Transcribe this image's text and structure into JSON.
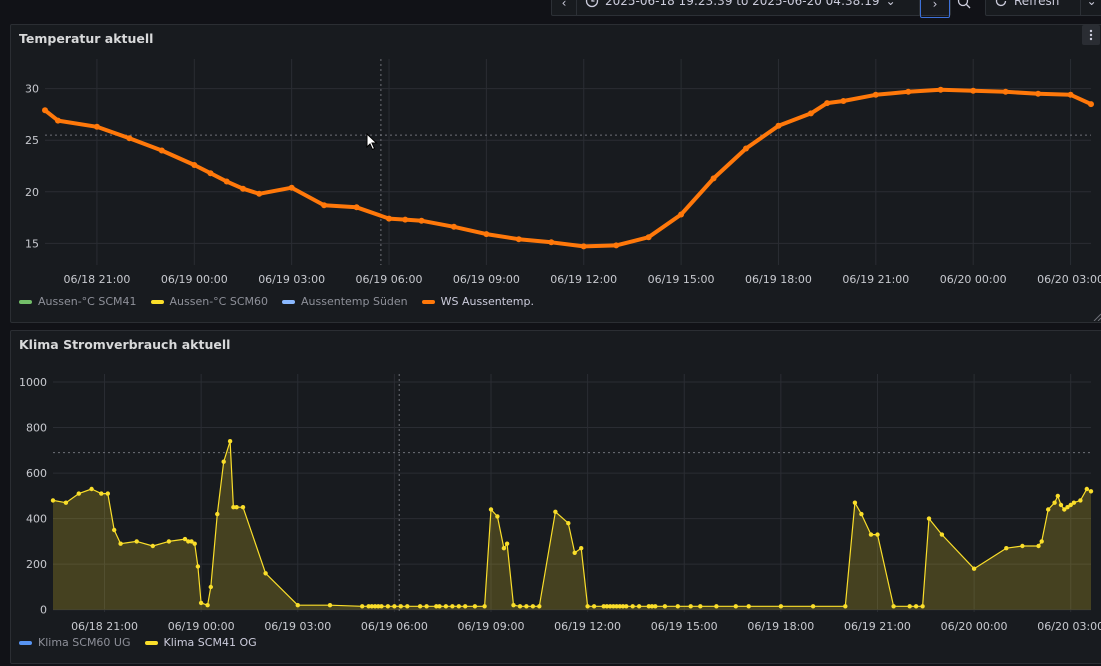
{
  "toolbar": {
    "time_range": "2025-06-18 19:23:39 to 2025-06-20 04:38:19",
    "refresh_label": "Refresh"
  },
  "panels": [
    {
      "title": "Temperatur aktuell",
      "legend": [
        {
          "label": "Aussen-°C SCM41",
          "color": "#73bf69"
        },
        {
          "label": "Aussen-°C SCM60",
          "color": "#fade2a"
        },
        {
          "label": "Aussentemp Süden",
          "color": "#8ab8ff"
        },
        {
          "label": "WS Aussentemp.",
          "color": "#ff780a"
        }
      ]
    },
    {
      "title": "Klima Stromverbrauch aktuell",
      "legend": [
        {
          "label": "Klima SCM60 UG",
          "color": "#5794f2"
        },
        {
          "label": "Klima SCM41 OG",
          "color": "#fade2a"
        }
      ]
    }
  ],
  "chart_data": [
    {
      "type": "scatter",
      "title": "Temperatur aktuell",
      "x_ticks": [
        "06/18 21:00",
        "06/19 00:00",
        "06/19 03:00",
        "06/19 06:00",
        "06/19 09:00",
        "06/19 12:00",
        "06/19 15:00",
        "06/19 18:00",
        "06/19 21:00",
        "06/20 00:00",
        "06/20 03:00"
      ],
      "y_ticks": [
        15,
        20,
        25,
        30
      ],
      "ylim": [
        12.9,
        32.1
      ],
      "xlim_hours": [
        -1.6,
        30.63
      ],
      "threshold_y": 25.5,
      "cursor_x_hours": 8.75,
      "grid": true,
      "legend_position": "bottom-left",
      "series": [
        {
          "name": "WS Aussentemp.",
          "color": "#ff780a",
          "x": [
            -1.6,
            -1.2,
            0,
            1,
            2,
            3,
            3.5,
            4,
            4.5,
            5,
            6,
            7,
            8,
            9,
            9.5,
            10,
            11,
            12,
            13,
            14,
            15,
            16,
            17,
            18,
            19,
            20,
            21,
            22,
            22.5,
            23,
            24,
            25,
            26,
            27,
            28,
            29,
            30,
            30.63
          ],
          "y": [
            27.9,
            26.9,
            26.3,
            25.2,
            24,
            22.6,
            21.8,
            21,
            20.3,
            19.8,
            20.4,
            18.7,
            18.5,
            17.4,
            17.3,
            17.2,
            16.6,
            15.9,
            15.4,
            15.1,
            14.7,
            14.8,
            15.6,
            17.8,
            21.3,
            24.2,
            26.4,
            27.6,
            28.6,
            28.8,
            29.4,
            29.7,
            29.9,
            29.8,
            29.7,
            29.5,
            29.4,
            28.5
          ]
        }
      ]
    },
    {
      "type": "area",
      "title": "Klima Stromverbrauch aktuell",
      "x_ticks": [
        "06/18 21:00",
        "06/19 00:00",
        "06/19 03:00",
        "06/19 06:00",
        "06/19 09:00",
        "06/19 12:00",
        "06/19 15:00",
        "06/19 18:00",
        "06/19 21:00",
        "06/20 00:00",
        "06/20 03:00"
      ],
      "y_ticks": [
        0,
        200,
        400,
        600,
        800,
        1000
      ],
      "ylim": [
        -10,
        1000
      ],
      "xlim_hours": [
        -1.6,
        30.63
      ],
      "threshold_y": 690,
      "cursor_x_hours": 9.15,
      "grid": true,
      "legend_position": "bottom-left",
      "series": [
        {
          "name": "Klima SCM41 OG",
          "color": "#fade2a",
          "x": [
            -1.6,
            -1.2,
            -0.8,
            -0.4,
            -0.1,
            0.1,
            0.3,
            0.5,
            1,
            1.5,
            2,
            2.5,
            2.6,
            2.7,
            2.8,
            2.9,
            3,
            3.2,
            3.3,
            3.5,
            3.7,
            3.9,
            4,
            4.1,
            4.3,
            5,
            6,
            7,
            8,
            8.2,
            8.3,
            8.4,
            8.5,
            8.6,
            8.8,
            9,
            9.2,
            9.4,
            9.8,
            10,
            10.3,
            10.4,
            10.6,
            10.8,
            11,
            11.2,
            11.5,
            11.8,
            12,
            12.2,
            12.4,
            12.5,
            12.7,
            12.9,
            13.1,
            13.3,
            13.5,
            14,
            14.4,
            14.6,
            14.8,
            15,
            15.2,
            15.5,
            15.6,
            15.7,
            15.8,
            15.9,
            16,
            16.1,
            16.2,
            16.4,
            16.6,
            16.9,
            17,
            17.1,
            17.4,
            17.8,
            18.2,
            18.5,
            19,
            19.6,
            20,
            21,
            22,
            23,
            23.3,
            23.5,
            23.8,
            24,
            24.5,
            25,
            25.2,
            25.4,
            25.6,
            26,
            27,
            28,
            28.5,
            29,
            29.1,
            29.3,
            29.5,
            29.6,
            29.7,
            29.8,
            29.9,
            30,
            30.1,
            30.3,
            30.5,
            30.63
          ],
          "y": [
            480,
            470,
            510,
            530,
            510,
            510,
            350,
            290,
            300,
            280,
            300,
            310,
            300,
            300,
            290,
            190,
            30,
            20,
            100,
            420,
            650,
            740,
            450,
            450,
            450,
            160,
            20,
            20,
            15,
            15,
            15,
            15,
            15,
            15,
            15,
            15,
            15,
            15,
            15,
            15,
            15,
            15,
            15,
            15,
            15,
            15,
            15,
            15,
            440,
            410,
            270,
            290,
            20,
            15,
            15,
            15,
            15,
            430,
            380,
            250,
            270,
            15,
            15,
            15,
            15,
            15,
            15,
            15,
            15,
            15,
            15,
            15,
            15,
            15,
            15,
            15,
            15,
            15,
            15,
            15,
            15,
            15,
            15,
            15,
            15,
            15,
            470,
            420,
            330,
            330,
            15,
            15,
            15,
            15,
            400,
            330,
            180,
            270,
            280,
            280,
            300,
            440,
            470,
            500,
            460,
            440,
            450,
            460,
            470,
            480,
            530,
            520
          ]
        }
      ]
    }
  ]
}
